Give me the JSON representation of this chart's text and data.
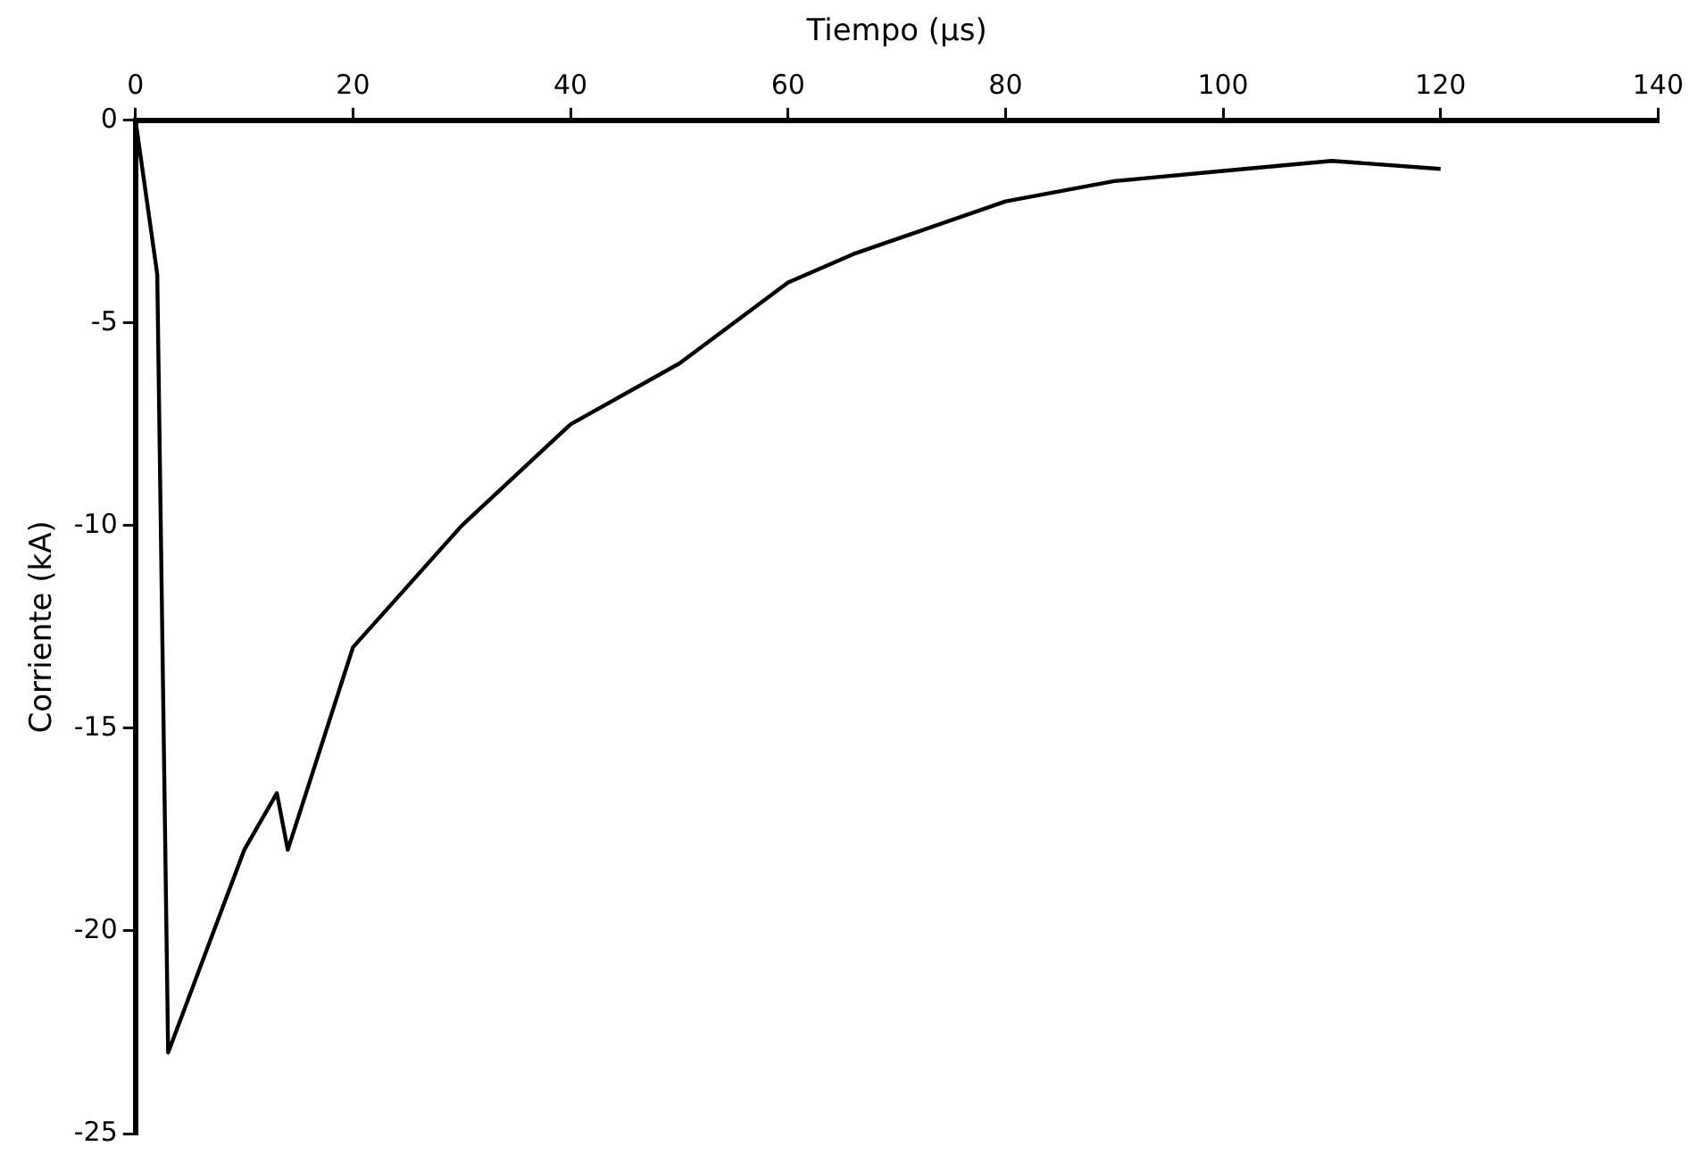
{
  "chart_data": {
    "type": "line",
    "xlabel": "Tiempo (μs)",
    "ylabel": "Corriente (kA)",
    "x": [
      0,
      2,
      3,
      10,
      13,
      14,
      20,
      30,
      40,
      50,
      60,
      66,
      80,
      90,
      100,
      110,
      120
    ],
    "series": [
      {
        "color": "#000000",
        "values": [
          0,
          -3.8,
          -23,
          -18,
          -16.6,
          -18,
          -13,
          -10,
          -7.5,
          -6,
          -4,
          -3.3,
          -2,
          -1.5,
          -1.25,
          -1,
          -1.2
        ]
      }
    ],
    "xlim": [
      0,
      140
    ],
    "xticks": [
      0,
      20,
      40,
      60,
      80,
      100,
      120,
      140
    ],
    "ylim": [
      -25,
      0
    ],
    "yticks": [
      -25,
      -20,
      -15,
      -10,
      -5,
      0
    ],
    "grid": false,
    "legend": false,
    "marker": "none",
    "line_style": "solid"
  }
}
